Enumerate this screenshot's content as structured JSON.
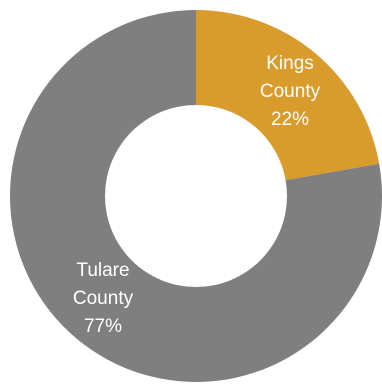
{
  "chart_data": {
    "type": "pie",
    "variant": "donut",
    "title": "",
    "legend": "none",
    "slices": [
      {
        "name": "Kings County",
        "label_lines": [
          "Kings",
          "County",
          "22%"
        ],
        "value": 22,
        "color": "#D99B2B"
      },
      {
        "name": "Tulare County",
        "label_lines": [
          "Tulare",
          "County",
          "77%"
        ],
        "value": 77,
        "color": "#7F7F7F"
      }
    ],
    "start_angle": "12 o'clock",
    "direction": "clockwise"
  }
}
